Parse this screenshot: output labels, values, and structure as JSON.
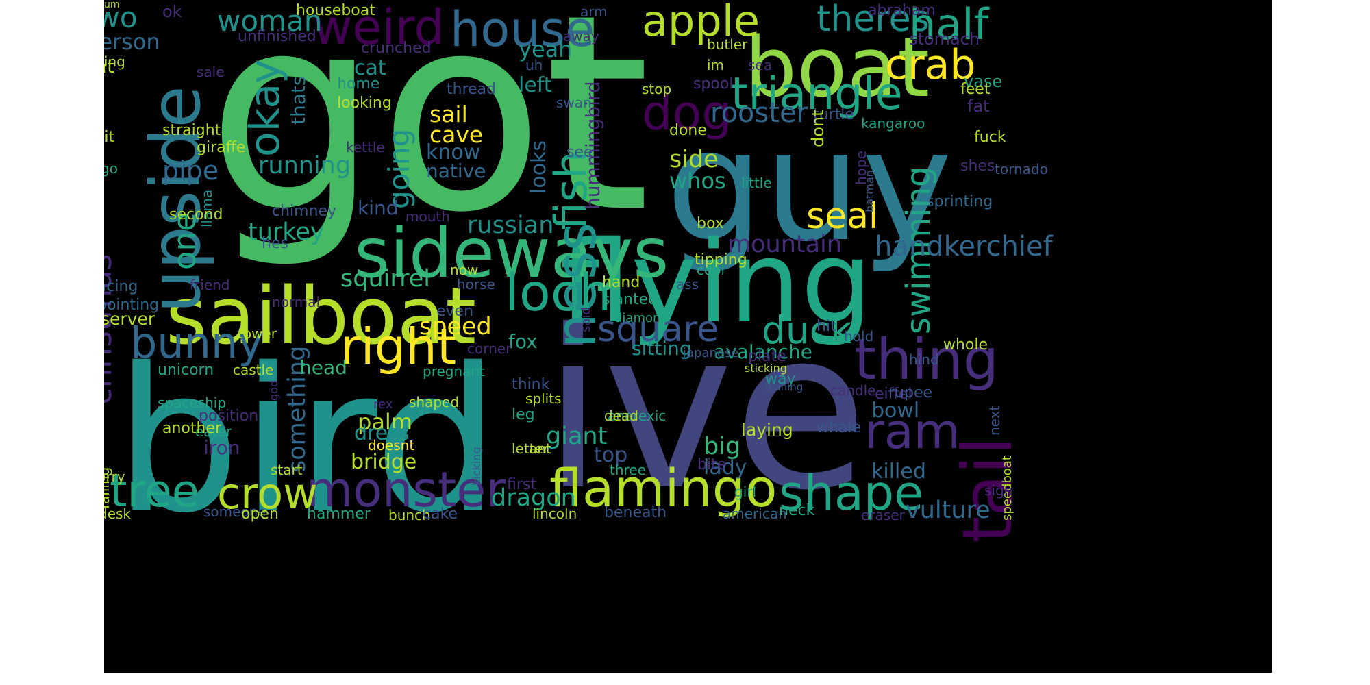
{
  "palette": {
    "c1": "#46b963",
    "c2": "#1f928c",
    "c3": "#41467f",
    "c4": "#2b7a8e",
    "c5": "#8fd744",
    "c6": "#b5de2b",
    "c7": "#fde725",
    "c8": "#440154",
    "c9": "#472e7c",
    "c10": "#21a685",
    "c11": "#35b779",
    "c12": "#31688e",
    "c13": "#39568c"
  },
  "words": [
    {
      "t": "got",
      "c": "c1"
    },
    {
      "t": "bird",
      "c": "c2"
    },
    {
      "t": "ive",
      "c": "c3"
    },
    {
      "t": "guy",
      "c": "c4"
    },
    {
      "t": "flying",
      "c": "c10"
    },
    {
      "t": "boat",
      "c": "c5"
    },
    {
      "t": "sailboat",
      "c": "c6"
    },
    {
      "t": "sideways",
      "c": "c11"
    },
    {
      "t": "upside",
      "c": "c4"
    },
    {
      "t": "weird",
      "c": "c8"
    },
    {
      "t": "house",
      "c": "c12"
    },
    {
      "t": "apple",
      "c": "c6"
    },
    {
      "t": "theres",
      "c": "c2"
    },
    {
      "t": "half",
      "c": "c10"
    },
    {
      "t": "crab",
      "c": "c7"
    },
    {
      "t": "triangle",
      "c": "c10"
    },
    {
      "t": "okay",
      "c": "c2"
    },
    {
      "t": "two",
      "c": "c2"
    },
    {
      "t": "woman",
      "c": "c2"
    },
    {
      "t": "person",
      "c": "c12"
    },
    {
      "t": "dog",
      "c": "c8"
    },
    {
      "t": "rooster",
      "c": "c12"
    },
    {
      "t": "fish",
      "c": "c10"
    },
    {
      "t": "ness",
      "c": "c2"
    },
    {
      "t": "loch",
      "c": "c10"
    },
    {
      "t": "thing",
      "c": "c9"
    },
    {
      "t": "tail",
      "c": "c8"
    },
    {
      "t": "ram",
      "c": "c9"
    },
    {
      "t": "monster",
      "c": "c9"
    },
    {
      "t": "flamingo",
      "c": "c6"
    },
    {
      "t": "shape",
      "c": "c10"
    },
    {
      "t": "crow",
      "c": "c6"
    },
    {
      "t": "tree",
      "c": "c10"
    },
    {
      "t": "right",
      "c": "c7"
    },
    {
      "t": "bunny",
      "c": "c12"
    },
    {
      "t": "square",
      "c": "c13"
    },
    {
      "t": "duck",
      "c": "c10"
    },
    {
      "t": "christmas",
      "c": "c9"
    },
    {
      "t": "one",
      "c": "c10"
    },
    {
      "t": "seal",
      "c": "c7"
    },
    {
      "t": "swimming",
      "c": "c10"
    },
    {
      "t": "handkerchief",
      "c": "c12"
    },
    {
      "t": "mountain",
      "c": "c9"
    },
    {
      "t": "going",
      "c": "c2"
    },
    {
      "t": "pipe",
      "c": "c12"
    },
    {
      "t": "running",
      "c": "c2"
    },
    {
      "t": "turkey",
      "c": "c10"
    },
    {
      "t": "russian",
      "c": "c2"
    },
    {
      "t": "squirrel",
      "c": "c11"
    },
    {
      "t": "speed",
      "c": "c7"
    },
    {
      "t": "something",
      "c": "c12"
    },
    {
      "t": "giant",
      "c": "c10"
    },
    {
      "t": "dragon",
      "c": "c10"
    },
    {
      "t": "palm",
      "c": "c6"
    },
    {
      "t": "dress",
      "c": "c2"
    },
    {
      "t": "bridge",
      "c": "c6"
    },
    {
      "t": "big",
      "c": "c11"
    },
    {
      "t": "lady",
      "c": "c12"
    },
    {
      "t": "top",
      "c": "c13"
    },
    {
      "t": "bowl",
      "c": "c12"
    },
    {
      "t": "vulture",
      "c": "c12"
    },
    {
      "t": "killed",
      "c": "c12"
    },
    {
      "t": "avalanche",
      "c": "c10"
    },
    {
      "t": "sitting",
      "c": "c2"
    },
    {
      "t": "side",
      "c": "c6"
    },
    {
      "t": "whos",
      "c": "c10"
    },
    {
      "t": "hummingbird",
      "c": "c9"
    },
    {
      "t": "looks",
      "c": "c12"
    },
    {
      "t": "sail",
      "c": "c7"
    },
    {
      "t": "cave",
      "c": "c7"
    },
    {
      "t": "know",
      "c": "c12"
    },
    {
      "t": "native",
      "c": "c12"
    },
    {
      "t": "yeah",
      "c": "c2"
    },
    {
      "t": "left",
      "c": "c2"
    },
    {
      "t": "cat",
      "c": "c2"
    },
    {
      "t": "kind",
      "c": "c13"
    },
    {
      "t": "head",
      "c": "c11"
    },
    {
      "t": "fox",
      "c": "c10"
    },
    {
      "t": "server",
      "c": "c6"
    },
    {
      "t": "iron",
      "c": "c9"
    },
    {
      "t": "thats",
      "c": "c4"
    },
    {
      "t": "hat",
      "c": "c6"
    },
    {
      "t": "ok",
      "c": "c9"
    },
    {
      "t": "houseboat",
      "c": "c6"
    },
    {
      "t": "unfinished",
      "c": "c9"
    },
    {
      "t": "crunched",
      "c": "c9"
    },
    {
      "t": "stomach",
      "c": "c9"
    },
    {
      "t": "abraham",
      "c": "c9"
    },
    {
      "t": "arm",
      "c": "c13"
    },
    {
      "t": "away",
      "c": "c9"
    },
    {
      "t": "butler",
      "c": "c6"
    },
    {
      "t": "im",
      "c": "c6"
    },
    {
      "t": "sea",
      "c": "c9"
    },
    {
      "t": "spool",
      "c": "c9"
    },
    {
      "t": "stop",
      "c": "c6"
    },
    {
      "t": "uh",
      "c": "c13"
    },
    {
      "t": "thread",
      "c": "c13"
    },
    {
      "t": "home",
      "c": "c2"
    },
    {
      "t": "looking",
      "c": "c6"
    },
    {
      "t": "trying",
      "c": "c6"
    },
    {
      "t": "sale",
      "c": "c9"
    },
    {
      "t": "fetal",
      "c": "c9"
    },
    {
      "t": "shit",
      "c": "c6"
    },
    {
      "t": "straight",
      "c": "c6"
    },
    {
      "t": "giraffe",
      "c": "c6"
    },
    {
      "t": "go",
      "c": "c10"
    },
    {
      "t": "kettle",
      "c": "c9"
    },
    {
      "t": "swan",
      "c": "c13"
    },
    {
      "t": "see",
      "c": "c13"
    },
    {
      "t": "vase",
      "c": "c10"
    },
    {
      "t": "feet",
      "c": "c6"
    },
    {
      "t": "fat",
      "c": "c9"
    },
    {
      "t": "turtle",
      "c": "c13"
    },
    {
      "t": "kangaroo",
      "c": "c10"
    },
    {
      "t": "fuck",
      "c": "c6"
    },
    {
      "t": "done",
      "c": "c6"
    },
    {
      "t": "dont",
      "c": "c6"
    },
    {
      "t": "tornado",
      "c": "c13"
    },
    {
      "t": "shes",
      "c": "c9"
    },
    {
      "t": "little",
      "c": "c10"
    },
    {
      "t": "batman",
      "c": "c13"
    },
    {
      "t": "hope",
      "c": "c9"
    },
    {
      "t": "sprinting",
      "c": "c12"
    },
    {
      "t": "box",
      "c": "c6"
    },
    {
      "t": "chimney",
      "c": "c13"
    },
    {
      "t": "llama",
      "c": "c2"
    },
    {
      "t": "mouth",
      "c": "c9"
    },
    {
      "t": "second",
      "c": "c6"
    },
    {
      "t": "hes",
      "c": "c13"
    },
    {
      "t": "facing",
      "c": "c12"
    },
    {
      "t": "friend",
      "c": "c9"
    },
    {
      "t": "pointing",
      "c": "c12"
    },
    {
      "t": "normal",
      "c": "c9"
    },
    {
      "t": "now",
      "c": "c6"
    },
    {
      "t": "horse",
      "c": "c13"
    },
    {
      "t": "even",
      "c": "c13"
    },
    {
      "t": "tipping",
      "c": "c6"
    },
    {
      "t": "cool",
      "c": "c10"
    },
    {
      "t": "ass",
      "c": "c13"
    },
    {
      "t": "hand",
      "c": "c6"
    },
    {
      "t": "slanted",
      "c": "c10"
    },
    {
      "t": "diamond",
      "c": "c10"
    },
    {
      "t": "said",
      "c": "c9"
    },
    {
      "t": "hit",
      "c": "c13"
    },
    {
      "t": "hold",
      "c": "c13"
    },
    {
      "t": "whole",
      "c": "c6"
    },
    {
      "t": "tower",
      "c": "c6"
    },
    {
      "t": "corner",
      "c": "c9"
    },
    {
      "t": "hind",
      "c": "c13"
    },
    {
      "t": "japanese",
      "c": "c13"
    },
    {
      "t": "plate",
      "c": "c9"
    },
    {
      "t": "unicorn",
      "c": "c10"
    },
    {
      "t": "castle",
      "c": "c6"
    },
    {
      "t": "pregnant",
      "c": "c10"
    },
    {
      "t": "sticking",
      "c": "c6"
    },
    {
      "t": "way",
      "c": "c2"
    },
    {
      "t": "think",
      "c": "c13"
    },
    {
      "t": "splits",
      "c": "c6"
    },
    {
      "t": "leaning",
      "c": "c13"
    },
    {
      "t": "candle",
      "c": "c9"
    },
    {
      "t": "eiffel",
      "c": "c9"
    },
    {
      "t": "rupee",
      "c": "c13"
    },
    {
      "t": "anorexic",
      "c": "c10"
    },
    {
      "t": "next",
      "c": "c13"
    },
    {
      "t": "speedboat",
      "c": "c6"
    },
    {
      "t": "spaceship",
      "c": "c10"
    },
    {
      "t": "shaped",
      "c": "c6"
    },
    {
      "t": "rex",
      "c": "c9"
    },
    {
      "t": "god",
      "c": "c9"
    },
    {
      "t": "position",
      "c": "c9"
    },
    {
      "t": "eater",
      "c": "c10"
    },
    {
      "t": "another",
      "c": "c6"
    },
    {
      "t": "leg",
      "c": "c10"
    },
    {
      "t": "dead",
      "c": "c6"
    },
    {
      "t": "laying",
      "c": "c6"
    },
    {
      "t": "whale",
      "c": "c13"
    },
    {
      "t": "letter",
      "c": "c6"
    },
    {
      "t": "ant",
      "c": "c6"
    },
    {
      "t": "kicking",
      "c": "c13"
    },
    {
      "t": "bite",
      "c": "c9"
    },
    {
      "t": "doesnt",
      "c": "c7"
    },
    {
      "t": "falling",
      "c": "c6"
    },
    {
      "t": "first",
      "c": "c9"
    },
    {
      "t": "three",
      "c": "c10"
    },
    {
      "t": "sorry",
      "c": "c6"
    },
    {
      "t": "start",
      "c": "c6"
    },
    {
      "t": "desk",
      "c": "c6"
    },
    {
      "t": "someone",
      "c": "c13"
    },
    {
      "t": "open",
      "c": "c6"
    },
    {
      "t": "hammer",
      "c": "c10"
    },
    {
      "t": "bunch",
      "c": "c6"
    },
    {
      "t": "cake",
      "c": "c13"
    },
    {
      "t": "lincoln",
      "c": "c6"
    },
    {
      "t": "beneath",
      "c": "c13"
    },
    {
      "t": "american",
      "c": "c12"
    },
    {
      "t": "neck",
      "c": "c10"
    },
    {
      "t": "eraser",
      "c": "c9"
    },
    {
      "t": "girl",
      "c": "c10"
    },
    {
      "t": "sign",
      "c": "c9"
    },
    {
      "t": "um",
      "c": "c6"
    }
  ]
}
